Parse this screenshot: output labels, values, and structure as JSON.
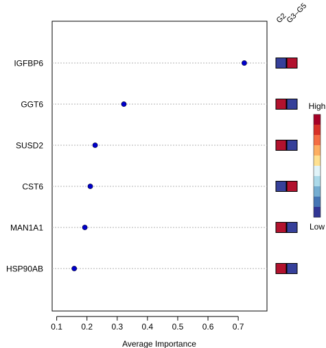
{
  "chart_data": {
    "type": "scatter",
    "xlabel": "Average Importance",
    "x_ticks": [
      "0.1",
      "0.2",
      "0.3",
      "0.4",
      "0.5",
      "0.6",
      "0.7"
    ],
    "xlim": [
      0.085,
      0.795
    ],
    "grid": "horizontal dotted lines at each category",
    "categories": [
      "IGFBP6",
      "GGT6",
      "SUSD2",
      "CST6",
      "MAN1A1",
      "HSP90AB"
    ],
    "values": [
      0.72,
      0.322,
      0.227,
      0.211,
      0.193,
      0.158
    ],
    "point_color": "#0000cc",
    "heatmap": {
      "columns": [
        "G2",
        "G3–G5"
      ],
      "rows": [
        [
          "low",
          "high"
        ],
        [
          "high",
          "low"
        ],
        [
          "high",
          "low"
        ],
        [
          "low",
          "high"
        ],
        [
          "high",
          "low"
        ],
        [
          "high",
          "low"
        ]
      ],
      "colors": {
        "high": "#b2122e",
        "low": "#36409a"
      }
    },
    "legend": {
      "high_label": "High",
      "low_label": "Low",
      "placement": "right",
      "gradient": [
        "#a50026",
        "#d73027",
        "#f46d43",
        "#fdae61",
        "#fee090",
        "#e0f3f8",
        "#abd9e9",
        "#74add1",
        "#4575b4",
        "#313695"
      ]
    }
  }
}
